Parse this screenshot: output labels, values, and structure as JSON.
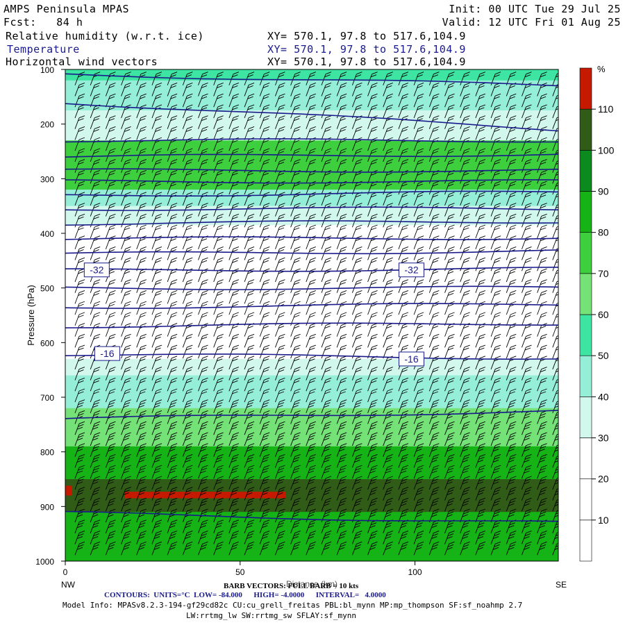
{
  "header": {
    "model": "AMPS Peninsula MPAS",
    "fcst": "Fcst:   84 h",
    "init": "Init: 00 UTC Tue 29 Jul 25",
    "valid": "Valid: 12 UTC Fri 01 Aug 25",
    "line1_label": "Relative humidity (w.r.t. ice)",
    "line2_label": "Temperature",
    "line3_label": "Horizontal wind vectors",
    "xy_text": "XY= 570.1, 97.8 to 517.6,104.9"
  },
  "footer": {
    "barb": "BARB VECTORS: FULL BARB = 10 kts",
    "contours": "CONTOURS:  UNITS=°C  LOW= -84.000      HIGH= -4.0000      INTERVAL=   4.0000",
    "model_info": "Model Info: MPASv8.2.3-194-gf29cd82c CU:cu_grell_freitas PBL:bl_mynn MP:mp_thompson SF:sf_noahmp 2.7",
    "model_info2": "LW:rrtmg_lw SW:rrtmg_sw SFLAY:sf_mynn"
  },
  "chart_data": {
    "type": "heatmap",
    "title": "Relative humidity (w.r.t. ice)",
    "xlabel": "Distance (km)",
    "ylabel": "Pressure (hPa)",
    "xlim": [
      0,
      141
    ],
    "ylim": [
      1000,
      100
    ],
    "x_ticks": [
      "0",
      "50",
      "100"
    ],
    "x_tick_values": [
      0,
      50,
      100
    ],
    "y_ticks": [
      "100",
      "200",
      "300",
      "400",
      "500",
      "600",
      "700",
      "800",
      "900",
      "1000"
    ],
    "y_tick_values": [
      100,
      200,
      300,
      400,
      500,
      600,
      700,
      800,
      900,
      1000
    ],
    "x_end_labels": {
      "left": "NW",
      "right": "SE"
    },
    "colorbar": {
      "unit": "%",
      "levels": [
        0,
        10,
        20,
        30,
        40,
        50,
        60,
        70,
        80,
        90,
        100,
        110,
        120
      ],
      "tick_labels": [
        "10",
        "20",
        "30",
        "40",
        "50",
        "60",
        "70",
        "80",
        "90",
        "100",
        "110"
      ],
      "colors": [
        "#ffffff",
        "#ffffff",
        "#ffffff",
        "#d2f8ee",
        "#95eed8",
        "#3ee4a2",
        "#74e276",
        "#3dcf3d",
        "#16b316",
        "#0b8a1d",
        "#315c17",
        "#c51a00"
      ]
    },
    "rh_bands": [
      {
        "p": [
          100,
          120
        ],
        "rh": 52
      },
      {
        "p": [
          120,
          175
        ],
        "rh": 45
      },
      {
        "p": [
          175,
          230
        ],
        "rh": 35
      },
      {
        "p": [
          230,
          280
        ],
        "rh": 70
      },
      {
        "p": [
          280,
          320
        ],
        "rh": 78
      },
      {
        "p": [
          320,
          350
        ],
        "rh": 45
      },
      {
        "p": [
          350,
          385
        ],
        "rh": 32
      },
      {
        "p": [
          385,
          630
        ],
        "rh": 15
      },
      {
        "p": [
          630,
          660
        ],
        "rh": 32
      },
      {
        "p": [
          660,
          720
        ],
        "rh": 45
      },
      {
        "p": [
          720,
          790
        ],
        "rh": 62
      },
      {
        "p": [
          790,
          850
        ],
        "rh": 80
      },
      {
        "p": [
          850,
          910
        ],
        "rh": 102
      },
      {
        "p": [
          910,
          1000
        ],
        "rh": 88
      }
    ],
    "rh_features": [
      {
        "x": [
          17,
          63
        ],
        "p": [
          873,
          885
        ],
        "rh": 112
      },
      {
        "x": [
          0,
          2
        ],
        "p": [
          862,
          880
        ],
        "rh": 112
      }
    ],
    "temperature_isotherms": [
      {
        "p_left": 108,
        "p_right": 130
      },
      {
        "p_left": 160,
        "p_right": 210
      },
      {
        "p_left": 230,
        "p_right": 230
      },
      {
        "p_left": 260,
        "p_right": 255
      },
      {
        "p_left": 285,
        "p_right": 285
      },
      {
        "p_left": 305,
        "p_right": 305
      },
      {
        "p_left": 330,
        "p_right": 325
      },
      {
        "p_left": 355,
        "p_right": 355
      },
      {
        "p_left": 382,
        "p_right": 378
      },
      {
        "p_left": 410,
        "p_right": 408
      },
      {
        "p_left": 438,
        "p_right": 432
      },
      {
        "p_left": 468,
        "p_right": 465
      },
      {
        "p_left": 500,
        "p_right": 500
      },
      {
        "p_left": 535,
        "p_right": 530
      },
      {
        "p_left": 570,
        "p_right": 565
      },
      {
        "p_left": 622,
        "p_right": 628
      },
      {
        "p_left": 740,
        "p_right": 725
      },
      {
        "p_left": 912,
        "p_right": 930
      }
    ],
    "contour_labels": [
      {
        "text": "-32",
        "x": 9,
        "p": 467
      },
      {
        "text": "-32",
        "x": 99,
        "p": 467
      },
      {
        "text": "-16",
        "x": 12,
        "p": 620
      },
      {
        "text": "-16",
        "x": 99,
        "p": 630
      }
    ],
    "wind_barbs": {
      "nx": 32,
      "p_min": 120,
      "p_max": 990,
      "p_step": 20
    }
  }
}
